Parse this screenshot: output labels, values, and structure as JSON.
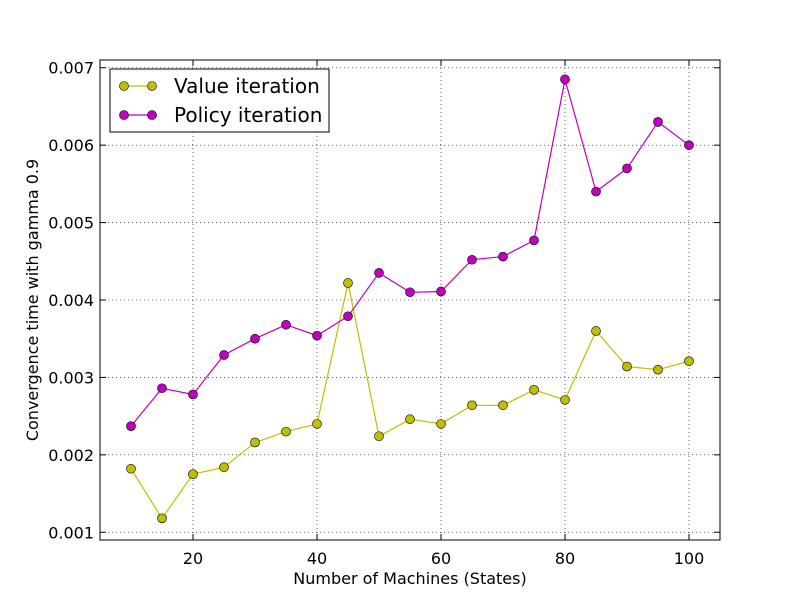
{
  "chart_data": {
    "type": "line",
    "title": "",
    "xlabel": "Number of Machines (States)",
    "ylabel": "Convergence time with gamma 0.9",
    "xlim": [
      5,
      105
    ],
    "ylim": [
      0.0009,
      0.0071
    ],
    "x_ticks": [
      20,
      40,
      60,
      80,
      100
    ],
    "x_tick_labels": [
      "20",
      "40",
      "60",
      "80",
      "100"
    ],
    "y_ticks": [
      0.001,
      0.002,
      0.003,
      0.004,
      0.005,
      0.006,
      0.007
    ],
    "y_tick_labels": [
      "0.001",
      "0.002",
      "0.003",
      "0.004",
      "0.005",
      "0.006",
      "0.007"
    ],
    "grid": true,
    "legend_position": "top-left",
    "x": [
      10,
      15,
      20,
      25,
      30,
      35,
      40,
      45,
      50,
      55,
      60,
      65,
      70,
      75,
      80,
      85,
      90,
      95,
      100
    ],
    "series": [
      {
        "name": "Value iteration",
        "color": "#bfbf00",
        "marker": "circle",
        "values": [
          0.00182,
          0.00118,
          0.00175,
          0.00184,
          0.00216,
          0.0023,
          0.0024,
          0.00422,
          0.00224,
          0.00246,
          0.0024,
          0.00264,
          0.00264,
          0.00284,
          0.00271,
          0.0036,
          0.00314,
          0.0031,
          0.00321
        ]
      },
      {
        "name": "Policy iteration",
        "color": "#bf00bf",
        "marker": "circle",
        "values": [
          0.00237,
          0.00286,
          0.00278,
          0.00329,
          0.0035,
          0.00368,
          0.00354,
          0.00379,
          0.00435,
          0.0041,
          0.00411,
          0.00452,
          0.00456,
          0.00477,
          0.00685,
          0.0054,
          0.0057,
          0.0063,
          0.006
        ]
      }
    ]
  }
}
